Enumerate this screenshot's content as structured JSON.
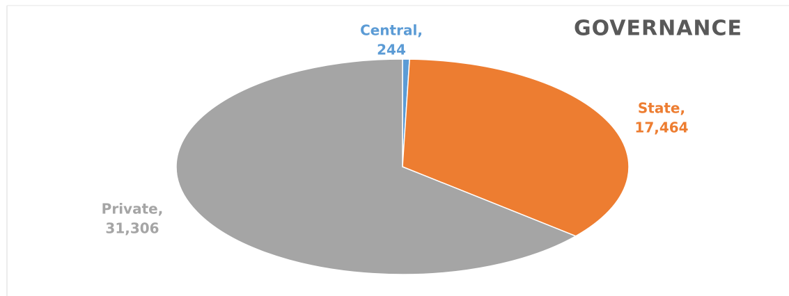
{
  "chart_data": {
    "type": "pie",
    "title": "GOVERNANCE",
    "categories": [
      "Central,",
      "State,",
      "Private,"
    ],
    "values": [
      244,
      17464,
      31306
    ],
    "value_labels": [
      "244",
      "17,464",
      "31,306"
    ],
    "colors": [
      "#5b9bd5",
      "#ed7d31",
      "#a5a5a5"
    ]
  }
}
